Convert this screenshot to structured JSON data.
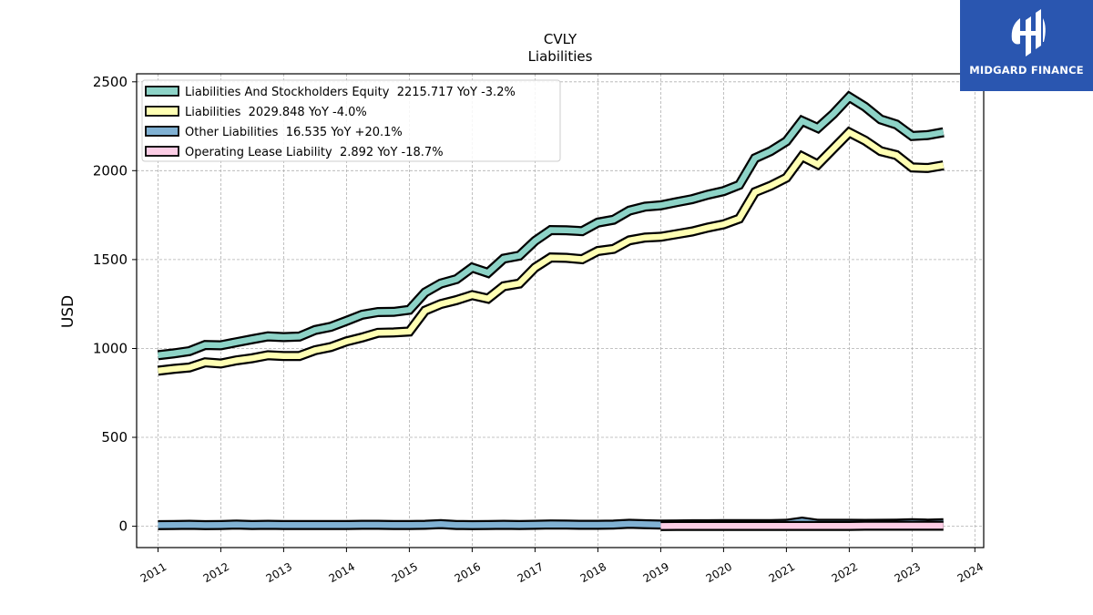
{
  "brand": {
    "name": "MIDGARD FINANCE",
    "bg_color": "#2a56b0"
  },
  "chart_data": {
    "type": "line",
    "title": "CVLY",
    "subtitle": "Liabilities",
    "ylabel": "USD",
    "xlabel": "",
    "xlim": [
      2010.66,
      2024.14
    ],
    "ylim": [
      -120,
      2545
    ],
    "x_ticks": [
      2011,
      2012,
      2013,
      2014,
      2015,
      2016,
      2017,
      2018,
      2019,
      2020,
      2021,
      2022,
      2023,
      2024
    ],
    "y_ticks": [
      0,
      500,
      1000,
      1500,
      2000,
      2500
    ],
    "grid": true,
    "legend_position": "top-left",
    "series": [
      {
        "name": "Liabilities And Stockholders Equity",
        "legend": "Liabilities And Stockholders Equity  2215.717 YoY -3.2%",
        "color": "#8dd3c7",
        "x": [
          2011.0,
          2011.25,
          2011.5,
          2011.75,
          2012.0,
          2012.25,
          2012.5,
          2012.75,
          2013.0,
          2013.25,
          2013.5,
          2013.75,
          2014.0,
          2014.25,
          2014.5,
          2014.75,
          2015.0,
          2015.25,
          2015.5,
          2015.75,
          2016.0,
          2016.25,
          2016.5,
          2016.75,
          2017.0,
          2017.25,
          2017.5,
          2017.75,
          2018.0,
          2018.25,
          2018.5,
          2018.75,
          2019.0,
          2019.25,
          2019.5,
          2019.75,
          2020.0,
          2020.25,
          2020.5,
          2020.75,
          2021.0,
          2021.25,
          2021.5,
          2021.75,
          2022.0,
          2022.25,
          2022.5,
          2022.75,
          2023.0,
          2023.25,
          2023.5
        ],
        "values": [
          962,
          972,
          985,
          1020,
          1018,
          1035,
          1052,
          1068,
          1064,
          1067,
          1104,
          1122,
          1155,
          1190,
          1205,
          1206,
          1217,
          1315,
          1365,
          1390,
          1455,
          1425,
          1505,
          1522,
          1605,
          1666,
          1665,
          1660,
          1708,
          1724,
          1775,
          1798,
          1805,
          1823,
          1840,
          1865,
          1885,
          1920,
          2070,
          2110,
          2165,
          2280,
          2240,
          2320,
          2415,
          2360,
          2288,
          2260,
          2195,
          2200,
          2216
        ]
      },
      {
        "name": "Liabilities",
        "legend": "Liabilities  2029.848 YoY -4.0%",
        "color": "#ffffb3",
        "x": [
          2011.0,
          2011.25,
          2011.5,
          2011.75,
          2012.0,
          2012.25,
          2012.5,
          2012.75,
          2013.0,
          2013.25,
          2013.5,
          2013.75,
          2014.0,
          2014.25,
          2014.5,
          2014.75,
          2015.0,
          2015.25,
          2015.5,
          2015.75,
          2016.0,
          2016.25,
          2016.5,
          2016.75,
          2017.0,
          2017.25,
          2017.5,
          2017.75,
          2018.0,
          2018.25,
          2018.5,
          2018.75,
          2019.0,
          2019.25,
          2019.5,
          2019.75,
          2020.0,
          2020.25,
          2020.5,
          2020.75,
          2021.0,
          2021.25,
          2021.5,
          2021.75,
          2022.0,
          2022.25,
          2022.5,
          2022.75,
          2023.0,
          2023.25,
          2023.5
        ],
        "values": [
          875,
          885,
          893,
          922,
          915,
          933,
          945,
          962,
          958,
          958,
          990,
          1008,
          1040,
          1062,
          1088,
          1090,
          1095,
          1213,
          1250,
          1272,
          1300,
          1280,
          1350,
          1365,
          1455,
          1512,
          1510,
          1502,
          1548,
          1560,
          1608,
          1624,
          1628,
          1643,
          1658,
          1680,
          1698,
          1730,
          1880,
          1915,
          1960,
          2080,
          2035,
          2125,
          2215,
          2170,
          2110,
          2088,
          2018,
          2015,
          2030
        ]
      },
      {
        "name": "Other Liabilities",
        "legend": "Other Liabilities  16.535 YoY +20.1%",
        "color": "#80b1d3",
        "x": [
          2011.0,
          2011.25,
          2011.5,
          2011.75,
          2012.0,
          2012.25,
          2012.5,
          2012.75,
          2013.0,
          2013.25,
          2013.5,
          2013.75,
          2014.0,
          2014.25,
          2014.5,
          2014.75,
          2015.0,
          2015.25,
          2015.5,
          2015.75,
          2016.0,
          2016.25,
          2016.5,
          2016.75,
          2017.0,
          2017.25,
          2017.5,
          2017.75,
          2018.0,
          2018.25,
          2018.5,
          2018.75,
          2019.0,
          2019.25,
          2019.5,
          2019.75,
          2020.0,
          2020.25,
          2020.5,
          2020.75,
          2021.0,
          2021.25,
          2021.5,
          2021.75,
          2022.0,
          2022.25,
          2022.5,
          2022.75,
          2023.0,
          2023.25,
          2023.5
        ],
        "values": [
          6,
          7,
          8,
          6,
          7,
          9,
          7,
          8,
          7,
          7,
          7,
          7,
          7,
          8,
          8,
          7,
          7,
          8,
          12,
          7,
          6,
          7,
          8,
          7,
          8,
          10,
          9,
          8,
          8,
          9,
          14,
          11,
          9,
          10,
          11,
          11,
          12,
          12,
          12,
          12,
          14,
          26,
          14,
          14,
          14,
          13,
          14,
          15,
          17,
          15,
          17
        ]
      },
      {
        "name": "Operating Lease Liability",
        "legend": "Operating Lease Liability  2.892 YoY -18.7%",
        "color": "#fccde5",
        "x": [
          2019.0,
          2019.25,
          2019.5,
          2019.75,
          2020.0,
          2020.25,
          2020.5,
          2020.75,
          2021.0,
          2021.25,
          2021.5,
          2021.75,
          2022.0,
          2022.25,
          2022.5,
          2022.75,
          2023.0,
          2023.25,
          2023.5
        ],
        "values": [
          1,
          2,
          2,
          2,
          2,
          2,
          2,
          2,
          2,
          2,
          2,
          2,
          2,
          3,
          3,
          3,
          3,
          3,
          3
        ]
      }
    ]
  }
}
